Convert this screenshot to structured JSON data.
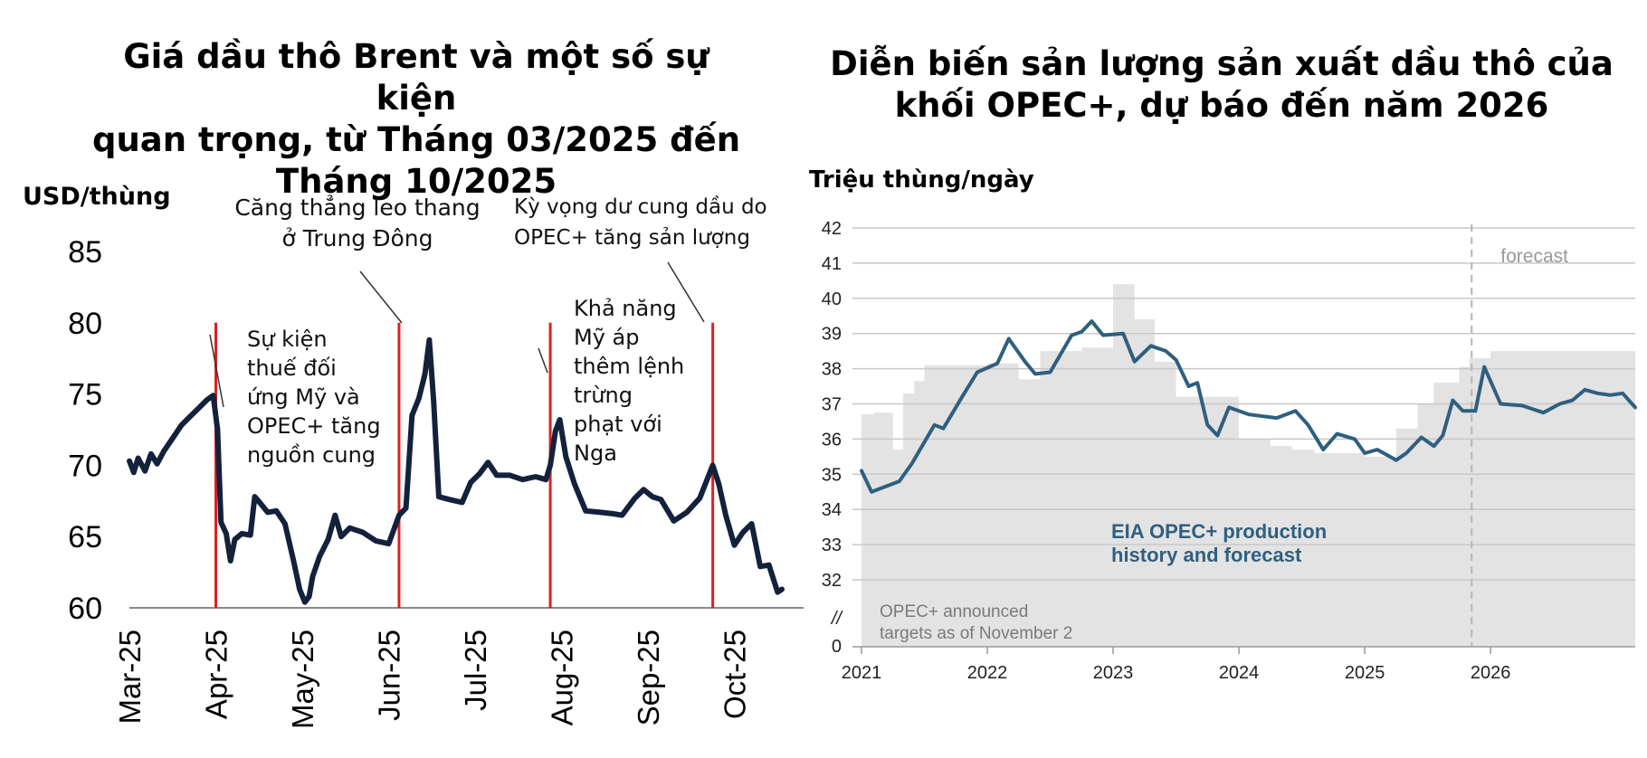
{
  "colors": {
    "brent_line": "#14213d",
    "event_line": "#e02020",
    "opec_line": "#2f5f80",
    "target_fill": "#e3e3e3",
    "grid": "#c8c8c8",
    "axis": "#999999"
  },
  "left_chart": {
    "title_lines": [
      "Giá dầu thô Brent và một số sự kiện",
      "quan trọng, từ Tháng 03/2025 đến",
      "Tháng 10/2025"
    ],
    "unit_label": "USD/thùng",
    "annotations": {
      "a1": [
        "Sự kiện",
        "thuế đối",
        "ứng Mỹ và",
        "OPEC+ tăng",
        "nguồn cung"
      ],
      "a2": [
        "Căng thẳng leo thang",
        "ở Trung Đông"
      ],
      "a3": [
        "Khả năng",
        "Mỹ áp",
        "thêm lệnh",
        "trừng",
        "phạt với",
        "Nga"
      ],
      "a4": [
        "Kỳ vọng dư cung dầu do",
        "OPEC+ tăng sản lượng"
      ]
    }
  },
  "right_chart": {
    "title_lines": [
      "Diễn biến sản lượng sản xuất dầu thô của",
      "khối OPEC+, dự báo đến năm 2026"
    ],
    "unit_label": "Triệu thùng/ngày",
    "forecast_label": "forecast",
    "series_label_lines": [
      "EIA OPEC+ production",
      "history and forecast"
    ],
    "targets_label_lines": [
      "OPEC+ announced",
      "targets as of November 2"
    ],
    "break_mark": "//"
  },
  "chart_data": [
    {
      "type": "line",
      "title": "Giá dầu thô Brent và một số sự kiện quan trọng, từ Tháng 03/2025 đến Tháng 10/2025",
      "xlabel": "",
      "ylabel": "USD/thùng",
      "ylim": [
        60,
        85
      ],
      "yticks": [
        60,
        65,
        70,
        75,
        80,
        85
      ],
      "xtick_labels": [
        "Mar-25",
        "Apr-25",
        "May-25",
        "Jun-25",
        "Jul-25",
        "Aug-25",
        "Sep-25",
        "Oct-25"
      ],
      "x_start_month": 3,
      "x_range_months": [
        0,
        7.7
      ],
      "event_lines_month": [
        1.0,
        3.12,
        4.87,
        6.75
      ],
      "event_line_top": 80,
      "series": [
        {
          "name": "Brent",
          "points": [
            [
              0,
              70.3
            ],
            [
              0.05,
              69.5
            ],
            [
              0.1,
              70.5
            ],
            [
              0.18,
              69.6
            ],
            [
              0.25,
              70.8
            ],
            [
              0.32,
              70.1
            ],
            [
              0.4,
              71.0
            ],
            [
              0.5,
              71.9
            ],
            [
              0.6,
              72.8
            ],
            [
              0.7,
              73.4
            ],
            [
              0.8,
              74.0
            ],
            [
              0.9,
              74.6
            ],
            [
              0.97,
              74.9
            ],
            [
              1.02,
              72.5
            ],
            [
              1.06,
              66.0
            ],
            [
              1.12,
              65.2
            ],
            [
              1.17,
              63.3
            ],
            [
              1.22,
              64.8
            ],
            [
              1.3,
              65.2
            ],
            [
              1.4,
              65.1
            ],
            [
              1.45,
              67.8
            ],
            [
              1.52,
              67.3
            ],
            [
              1.6,
              66.7
            ],
            [
              1.7,
              66.8
            ],
            [
              1.8,
              65.9
            ],
            [
              1.9,
              63.3
            ],
            [
              1.97,
              61.3
            ],
            [
              2.03,
              60.4
            ],
            [
              2.08,
              60.8
            ],
            [
              2.12,
              62.2
            ],
            [
              2.2,
              63.6
            ],
            [
              2.3,
              64.8
            ],
            [
              2.38,
              66.5
            ],
            [
              2.45,
              65.0
            ],
            [
              2.55,
              65.6
            ],
            [
              2.7,
              65.3
            ],
            [
              2.85,
              64.7
            ],
            [
              3.0,
              64.5
            ],
            [
              3.12,
              66.5
            ],
            [
              3.2,
              67.0
            ],
            [
              3.27,
              73.5
            ],
            [
              3.35,
              74.7
            ],
            [
              3.42,
              76.4
            ],
            [
              3.47,
              78.8
            ],
            [
              3.52,
              74.5
            ],
            [
              3.58,
              67.8
            ],
            [
              3.7,
              67.6
            ],
            [
              3.85,
              67.4
            ],
            [
              3.95,
              68.8
            ],
            [
              4.05,
              69.4
            ],
            [
              4.15,
              70.2
            ],
            [
              4.25,
              69.3
            ],
            [
              4.4,
              69.3
            ],
            [
              4.55,
              69.0
            ],
            [
              4.7,
              69.2
            ],
            [
              4.82,
              69.0
            ],
            [
              4.87,
              70.0
            ],
            [
              4.93,
              72.4
            ],
            [
              4.98,
              73.2
            ],
            [
              5.05,
              70.6
            ],
            [
              5.15,
              68.7
            ],
            [
              5.28,
              66.8
            ],
            [
              5.45,
              66.7
            ],
            [
              5.6,
              66.6
            ],
            [
              5.7,
              66.5
            ],
            [
              5.85,
              67.7
            ],
            [
              5.95,
              68.3
            ],
            [
              6.05,
              67.8
            ],
            [
              6.15,
              67.6
            ],
            [
              6.3,
              66.1
            ],
            [
              6.45,
              66.7
            ],
            [
              6.6,
              67.7
            ],
            [
              6.75,
              70.0
            ],
            [
              6.82,
              68.7
            ],
            [
              6.9,
              66.5
            ],
            [
              7.0,
              64.4
            ],
            [
              7.1,
              65.3
            ],
            [
              7.2,
              65.9
            ],
            [
              7.3,
              62.9
            ],
            [
              7.4,
              63.0
            ],
            [
              7.5,
              61.1
            ],
            [
              7.55,
              61.3
            ]
          ]
        }
      ]
    },
    {
      "type": "area",
      "title": "Diễn biến sản lượng sản xuất dầu thô của khối OPEC+, dự báo đến năm 2026",
      "xlabel": "",
      "ylabel": "Triệu thùng/ngày",
      "ylim": [
        32,
        42
      ],
      "yticks": [
        32,
        33,
        34,
        35,
        36,
        37,
        38,
        39,
        40,
        41,
        42
      ],
      "axis_break": true,
      "bottom_tick": 0,
      "xtick_labels": [
        "2021",
        "2022",
        "2023",
        "2024",
        "2025",
        "2026"
      ],
      "x_range_years": [
        2021,
        2027.15
      ],
      "forecast_start": 2025.85,
      "series": [
        {
          "name": "OPEC+ announced targets as of November 2",
          "type": "step",
          "steps": [
            [
              2021.0,
              36.7
            ],
            [
              2021.1,
              36.75
            ],
            [
              2021.25,
              35.7
            ],
            [
              2021.33,
              37.3
            ],
            [
              2021.42,
              37.65
            ],
            [
              2021.5,
              38.1
            ],
            [
              2022.0,
              38.15
            ],
            [
              2022.25,
              37.7
            ],
            [
              2022.42,
              38.5
            ],
            [
              2022.75,
              38.6
            ],
            [
              2023.0,
              40.4
            ],
            [
              2023.17,
              39.4
            ],
            [
              2023.33,
              38.2
            ],
            [
              2023.5,
              37.2
            ],
            [
              2023.75,
              37.2
            ],
            [
              2024.0,
              36.0
            ],
            [
              2024.25,
              35.8
            ],
            [
              2024.42,
              35.7
            ],
            [
              2024.6,
              35.6
            ],
            [
              2025.0,
              35.5
            ],
            [
              2025.25,
              36.3
            ],
            [
              2025.42,
              37.0
            ],
            [
              2025.55,
              37.6
            ],
            [
              2025.75,
              38.05
            ],
            [
              2025.83,
              38.3
            ],
            [
              2026.0,
              38.5
            ],
            [
              2027.15,
              38.5
            ]
          ]
        },
        {
          "name": "EIA OPEC+ production history and forecast",
          "type": "line",
          "points": [
            [
              2021.0,
              35.1
            ],
            [
              2021.08,
              34.5
            ],
            [
              2021.3,
              34.8
            ],
            [
              2021.4,
              35.3
            ],
            [
              2021.58,
              36.4
            ],
            [
              2021.65,
              36.3
            ],
            [
              2021.8,
              37.2
            ],
            [
              2021.92,
              37.9
            ],
            [
              2022.08,
              38.15
            ],
            [
              2022.17,
              38.85
            ],
            [
              2022.3,
              38.2
            ],
            [
              2022.38,
              37.85
            ],
            [
              2022.5,
              37.9
            ],
            [
              2022.67,
              38.95
            ],
            [
              2022.75,
              39.05
            ],
            [
              2022.83,
              39.35
            ],
            [
              2022.92,
              38.95
            ],
            [
              2023.08,
              39.0
            ],
            [
              2023.17,
              38.2
            ],
            [
              2023.3,
              38.65
            ],
            [
              2023.42,
              38.5
            ],
            [
              2023.5,
              38.25
            ],
            [
              2023.6,
              37.5
            ],
            [
              2023.67,
              37.6
            ],
            [
              2023.75,
              36.4
            ],
            [
              2023.83,
              36.1
            ],
            [
              2023.92,
              36.9
            ],
            [
              2024.08,
              36.7
            ],
            [
              2024.3,
              36.6
            ],
            [
              2024.45,
              36.8
            ],
            [
              2024.55,
              36.4
            ],
            [
              2024.67,
              35.7
            ],
            [
              2024.78,
              36.15
            ],
            [
              2024.92,
              36.0
            ],
            [
              2025.0,
              35.6
            ],
            [
              2025.1,
              35.7
            ],
            [
              2025.25,
              35.4
            ],
            [
              2025.33,
              35.6
            ],
            [
              2025.45,
              36.05
            ],
            [
              2025.55,
              35.8
            ],
            [
              2025.62,
              36.1
            ],
            [
              2025.7,
              37.1
            ],
            [
              2025.78,
              36.8
            ],
            [
              2025.88,
              36.8
            ],
            [
              2025.95,
              38.05
            ],
            [
              2026.08,
              37.0
            ],
            [
              2026.25,
              36.95
            ],
            [
              2026.42,
              36.75
            ],
            [
              2026.55,
              37.0
            ],
            [
              2026.65,
              37.1
            ],
            [
              2026.75,
              37.4
            ],
            [
              2026.85,
              37.3
            ],
            [
              2026.95,
              37.25
            ],
            [
              2027.05,
              37.3
            ],
            [
              2027.15,
              36.9
            ]
          ]
        }
      ]
    }
  ]
}
